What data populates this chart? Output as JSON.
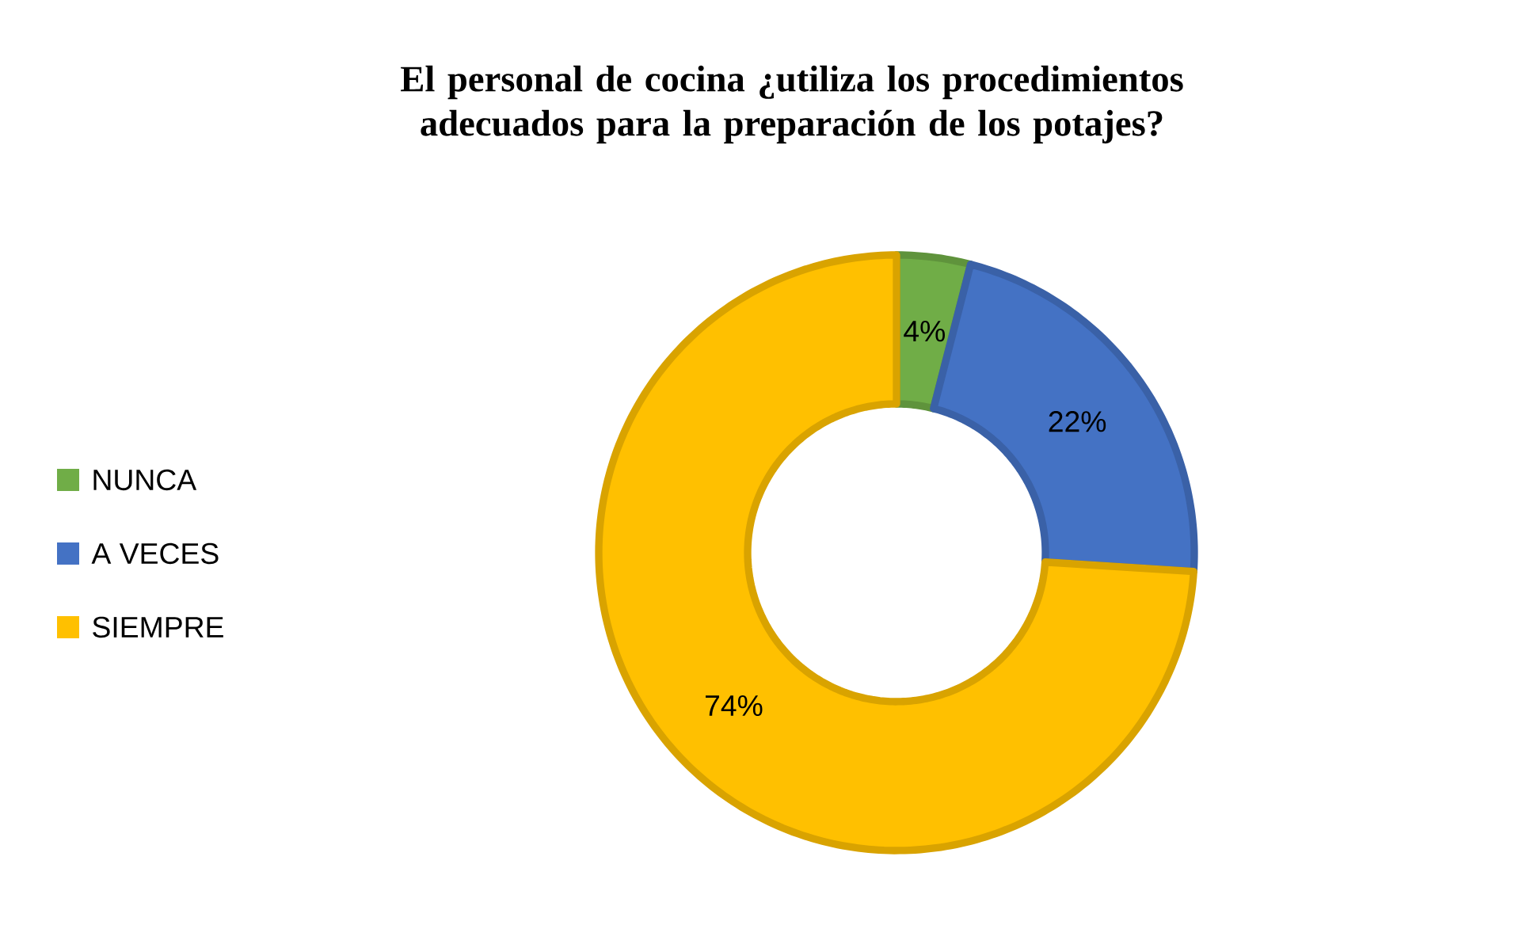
{
  "chart_data": {
    "type": "donut",
    "title": "El personal de cocina ¿utiliza los procedimientos adecuados para la preparación de los potajes?",
    "categories": [
      "NUNCA",
      "A VECES",
      "SIEMPRE"
    ],
    "values": [
      4,
      22,
      74
    ],
    "colors": [
      "#70ad47",
      "#4472c4",
      "#ffc000"
    ],
    "value_labels": [
      "4%",
      "22%",
      "74%"
    ],
    "legend": "left"
  }
}
